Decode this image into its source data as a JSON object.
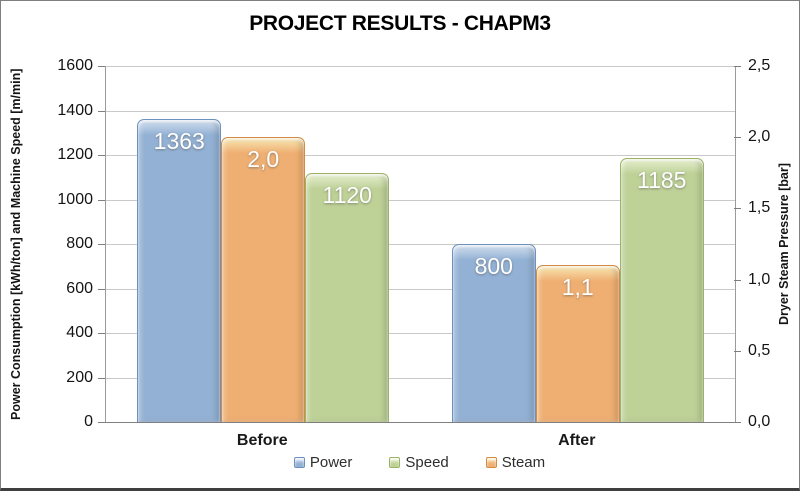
{
  "chart_data": {
    "type": "bar",
    "title": "PROJECT RESULTS - CHAPM3",
    "categories": [
      "Before",
      "After"
    ],
    "series": [
      {
        "name": "Power",
        "axis": "left",
        "values": [
          1363,
          800
        ],
        "labels": [
          "1363",
          "800"
        ],
        "fill": "#93B1D4",
        "border": "#6E92BF",
        "highlight": "#CFDDEE"
      },
      {
        "name": "Steam",
        "axis": "right",
        "values": [
          2.0,
          1.1
        ],
        "labels": [
          "2,0",
          "1,1"
        ],
        "fill": "#EFAF72",
        "border": "#D18B44",
        "highlight": "#F8E5B0"
      },
      {
        "name": "Speed",
        "axis": "left",
        "values": [
          1120,
          1185
        ],
        "labels": [
          "1120",
          "1185"
        ],
        "fill": "#BED197",
        "border": "#9AB366",
        "highlight": "#E4EECB"
      }
    ],
    "bar_order": [
      "Power",
      "Steam",
      "Speed"
    ],
    "legend_order": [
      "Power",
      "Speed",
      "Steam"
    ],
    "legend_position": "bottom",
    "grid": true,
    "ylabel_left": "Power Consumption [kWh/ton] and Machine Speed [m/min]",
    "ylabel_right": "Dryer Steam Pressure [bar]",
    "axis_left": {
      "min": 0,
      "max": 1600,
      "step": 200,
      "tick_labels": [
        "0",
        "200",
        "400",
        "600",
        "800",
        "1000",
        "1200",
        "1400",
        "1600"
      ]
    },
    "axis_right": {
      "min": 0,
      "max": 2.5,
      "step": 0.5,
      "tick_labels": [
        "0,0",
        "0,5",
        "1,0",
        "1,5",
        "2,0",
        "2,5"
      ]
    }
  }
}
